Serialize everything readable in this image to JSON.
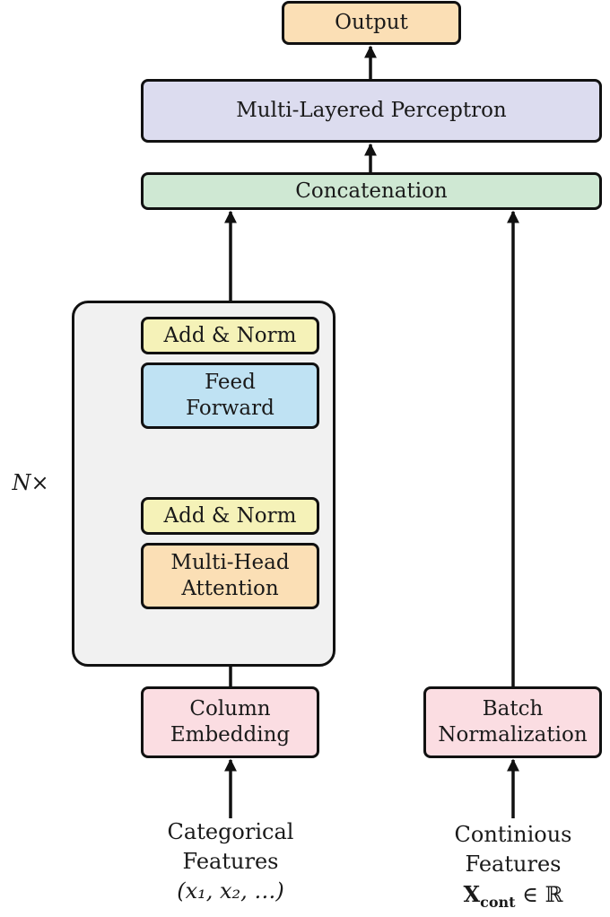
{
  "nodes": {
    "output": "Output",
    "mlp": "Multi-Layered Perceptron",
    "concat": "Concatenation",
    "add_norm_top": "Add & Norm",
    "feed_forward": [
      "Feed",
      "Forward"
    ],
    "add_norm_bottom": "Add & Norm",
    "mha": [
      "Multi-Head",
      "Attention"
    ],
    "column_embedding": [
      "Column",
      "Embedding"
    ],
    "batch_norm": [
      "Batch",
      "Normalization"
    ]
  },
  "inputs": {
    "categorical": [
      "Categorical",
      "Features",
      "(x₁, x₂, …)"
    ],
    "continuous": [
      "Continious",
      "Features"
    ],
    "continuous_symbol": "X",
    "continuous_symbol_sub": "cont",
    "continuous_set": "∈ ℝ"
  },
  "repeat_label": "N×",
  "colors": {
    "output": "#fbdfb5",
    "mlp": "#dcdcef",
    "concat": "#cfe8d3",
    "add_norm": "#f5f2b8",
    "feed_forward": "#bfe2f3",
    "mha": "#fbdfb5",
    "embedding": "#fbdde2",
    "container": "#f1f1f1"
  }
}
